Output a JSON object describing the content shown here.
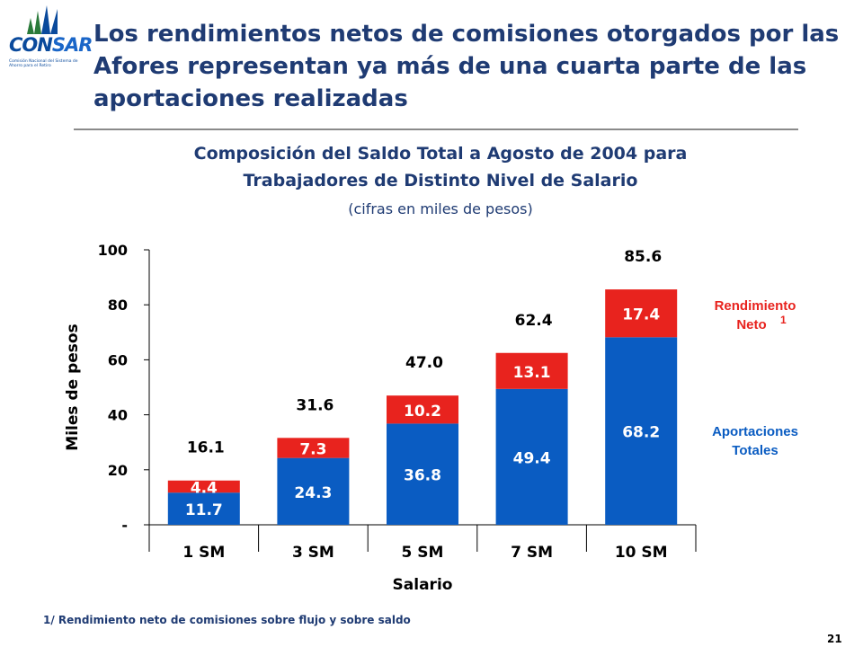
{
  "logo": {
    "name": "CONSAR",
    "name_a": "CON",
    "name_b": "SAR",
    "tagline": "Comisión Nacional del Sistema de Ahorro para el Retiro"
  },
  "slide": {
    "title": "Los rendimientos netos de comisiones otorgados por las Afores representan ya más de una cuarta parte de las aportaciones realizadas",
    "footnote": "1/ Rendimiento neto de comisiones sobre flujo y sobre saldo",
    "page_number": "21"
  },
  "chart_data": {
    "type": "bar",
    "stacked": true,
    "title_line1": "Composición del Saldo Total  a Agosto de 2004 para",
    "title_line2": "Trabajadores de Distinto Nivel de Salario",
    "subtitle": "(cifras en miles de pesos)",
    "xlabel": "Salario",
    "ylabel": "Miles de pesos",
    "ylim": [
      0,
      100
    ],
    "yticks": [
      0,
      20,
      40,
      60,
      80,
      100
    ],
    "ytick_labels": [
      "-",
      "20",
      "40",
      "60",
      "80",
      "100"
    ],
    "categories": [
      "1 SM",
      "3 SM",
      "5 SM",
      "7 SM",
      "10 SM"
    ],
    "series": [
      {
        "name": "Aportaciones Totales",
        "values": [
          11.7,
          24.3,
          36.8,
          49.4,
          68.2
        ],
        "color": "#0a5cc2"
      },
      {
        "name": "Rendimiento Neto",
        "footnote_mark": "1",
        "values": [
          4.4,
          7.3,
          10.2,
          13.1,
          17.4
        ],
        "color": "#e8231e"
      }
    ],
    "totals": [
      16.1,
      31.6,
      47.0,
      62.4,
      85.6
    ],
    "total_labels": [
      "16.1",
      "31.6",
      "47.0",
      "62.4",
      "85.6"
    ],
    "grid": false,
    "legend": "right"
  }
}
